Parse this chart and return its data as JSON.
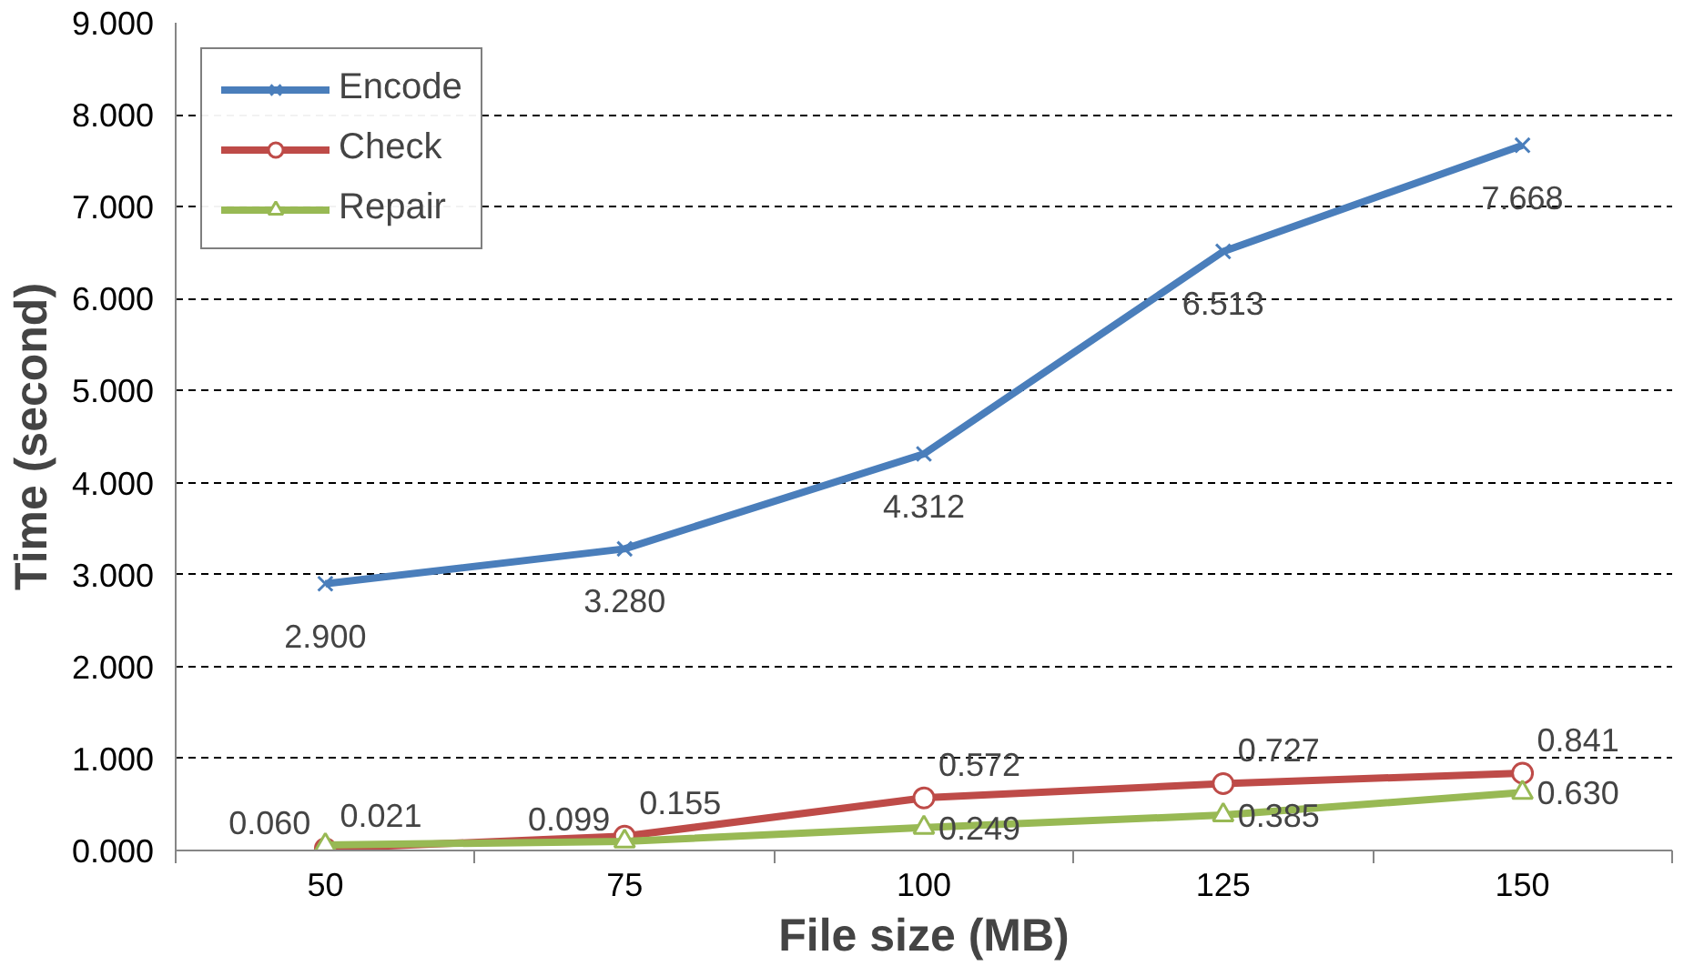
{
  "chart_data": {
    "type": "line",
    "xlabel": "File size (MB)",
    "ylabel": "Time (second)",
    "categories": [
      "50",
      "75",
      "100",
      "125",
      "150"
    ],
    "ylim": [
      0,
      9
    ],
    "yticks": [
      {
        "value": 0,
        "label": "0.000"
      },
      {
        "value": 1,
        "label": "1.000"
      },
      {
        "value": 2,
        "label": "2.000"
      },
      {
        "value": 3,
        "label": "3.000"
      },
      {
        "value": 4,
        "label": "4.000"
      },
      {
        "value": 5,
        "label": "5.000"
      },
      {
        "value": 6,
        "label": "6.000"
      },
      {
        "value": 7,
        "label": "7.000"
      },
      {
        "value": 8,
        "label": "8.000"
      },
      {
        "value": 9,
        "label": "9.000"
      }
    ],
    "grid": "y",
    "legend": "top left",
    "line_style": "solid",
    "series": [
      {
        "name": "Encode",
        "color": "#4a7ebb",
        "marker": "cross",
        "values": [
          2.9,
          3.28,
          4.312,
          6.513,
          7.668
        ],
        "value_labels": [
          "2.900",
          "3.280",
          "4.312",
          "6.513",
          "7.668"
        ]
      },
      {
        "name": "Check",
        "color": "#be4b48",
        "marker": "circle",
        "values": [
          0.021,
          0.155,
          0.572,
          0.727,
          0.841
        ],
        "value_labels": [
          "0.021",
          "0.155",
          "0.572",
          "0.727",
          "0.841"
        ]
      },
      {
        "name": "Repair",
        "color": "#98b954",
        "marker": "triangle",
        "values": [
          0.06,
          0.099,
          0.249,
          0.385,
          0.63
        ],
        "value_labels": [
          "0.060",
          "0.099",
          "0.249",
          "0.385",
          "0.630"
        ]
      }
    ]
  }
}
